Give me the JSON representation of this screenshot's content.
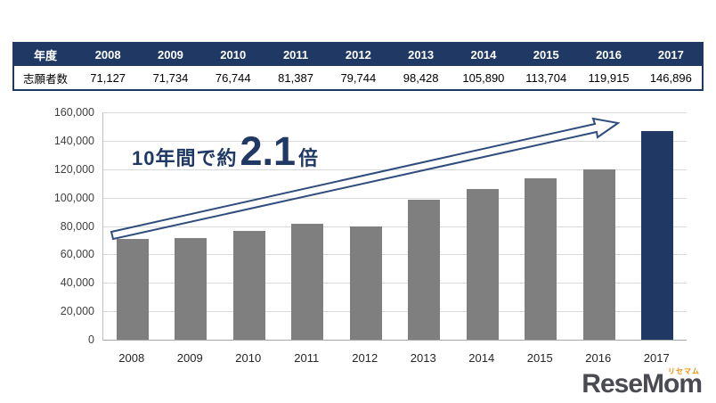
{
  "table": {
    "corner_label": "年度",
    "row_label": "志願者数",
    "years": [
      "2008",
      "2009",
      "2010",
      "2011",
      "2012",
      "2013",
      "2014",
      "2015",
      "2016",
      "2017"
    ],
    "values": [
      "71,127",
      "71,734",
      "76,744",
      "81,387",
      "79,744",
      "98,428",
      "105,890",
      "113,704",
      "119,915",
      "146,896"
    ]
  },
  "chart_data": {
    "type": "bar",
    "categories": [
      "2008",
      "2009",
      "2010",
      "2011",
      "2012",
      "2013",
      "2014",
      "2015",
      "2016",
      "2017"
    ],
    "values": [
      71127,
      71734,
      76744,
      81387,
      79744,
      98428,
      105890,
      113704,
      119915,
      146896
    ],
    "ylim": [
      0,
      160000
    ],
    "ytick_step": 20000,
    "grid": true,
    "legend": false,
    "xlabel": "",
    "ylabel": "",
    "bar_color": "#7f7f7f",
    "highlight_color": "#1f3864",
    "highlight_index": 9
  },
  "annotation": {
    "prefix": "10年間で約",
    "value": "2.1",
    "suffix": "倍",
    "color": "#1f3864"
  },
  "logo": {
    "text": "ReseMom",
    "ruby": "リセマム"
  }
}
